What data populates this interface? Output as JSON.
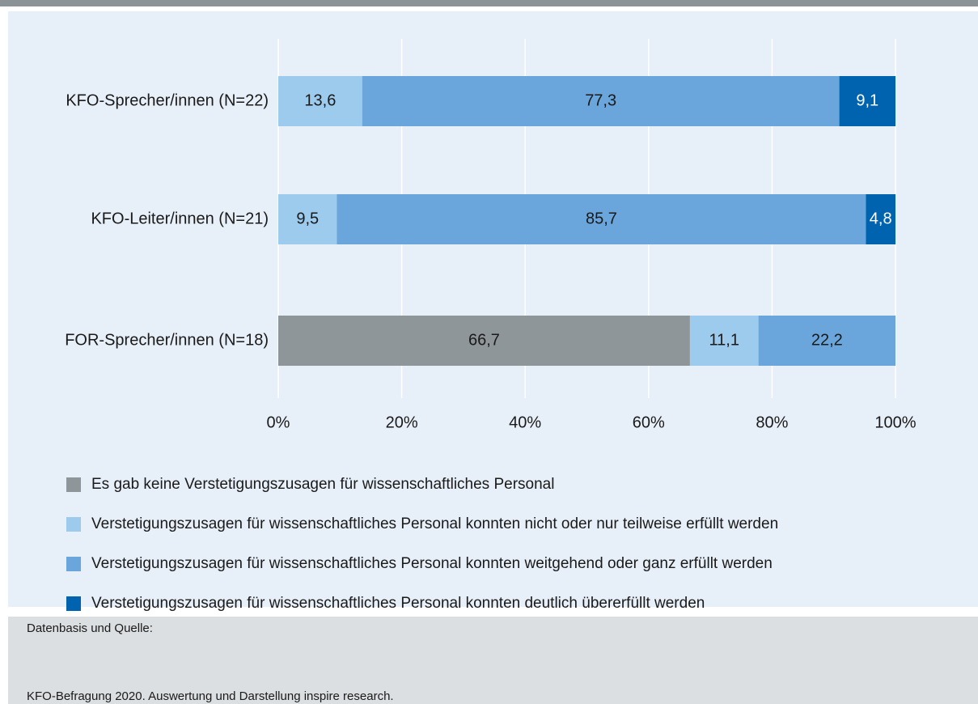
{
  "chart_data": {
    "type": "stacked-barh",
    "categories": [
      "KFO-Sprecher/innen (N=22)",
      "KFO-Leiter/innen (N=21)",
      "FOR-Sprecher/innen (N=18)"
    ],
    "series": [
      {
        "name": "Es gab keine Verstetigungszusagen für wissenschaftliches Personal",
        "color": "#8f9699",
        "values": [
          null,
          null,
          66.7
        ],
        "value_labels": [
          null,
          null,
          "66,7"
        ]
      },
      {
        "name": "Verstetigungszusagen für wissenschaftliches Personal konnten nicht oder nur teilweise erfüllt werden",
        "color": "#9dcbee",
        "values": [
          13.6,
          9.5,
          11.1
        ],
        "value_labels": [
          "13,6",
          "9,5",
          "11,1"
        ]
      },
      {
        "name": "Verstetigungszusagen für wissenschaftliches Personal konnten weitgehend oder ganz erfüllt werden",
        "color": "#6aa6db",
        "values": [
          77.3,
          85.7,
          22.2
        ],
        "value_labels": [
          "77,3",
          "85,7",
          "22,2"
        ]
      },
      {
        "name": "Verstetigungszusagen für wissenschaftliches Personal konnten deutlich übererfüllt werden",
        "color": "#0063b0",
        "values": [
          9.1,
          4.8,
          null
        ],
        "value_labels": [
          "9,1",
          "4,8",
          null
        ]
      }
    ],
    "xlim": [
      0,
      100
    ],
    "xticks": [
      {
        "value": 0,
        "label": "0%"
      },
      {
        "value": 20,
        "label": "20%"
      },
      {
        "value": 40,
        "label": "40%"
      },
      {
        "value": 60,
        "label": "60%"
      },
      {
        "value": 80,
        "label": "80%"
      },
      {
        "value": 100,
        "label": "100%"
      }
    ],
    "grid": true,
    "legend": "bottom"
  },
  "footer": {
    "heading": "Datenbasis und Quelle:",
    "source": "KFO-Befragung 2020. Auswertung und Darstellung inspire research."
  }
}
